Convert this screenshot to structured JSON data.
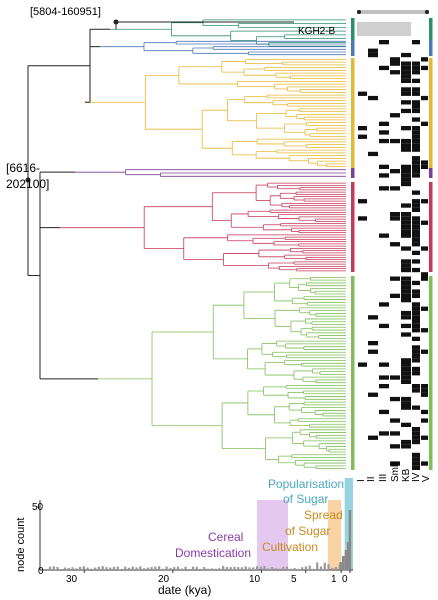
{
  "tree": {
    "top_node_label": "[5804-160951]",
    "leaf_label": "KGH2-B",
    "root_label_line1": "[6616-",
    "root_label_line2": "202100]",
    "clades": [
      {
        "color": "#2a8f6a",
        "leaves": 8
      },
      {
        "color": "#4a78b8",
        "leaves": 6
      },
      {
        "color": "#e8b830",
        "leaves": 40
      },
      {
        "color": "#7b3f98",
        "leaves": 3
      },
      {
        "color": "#c8385a",
        "leaves": 40
      },
      {
        "color": "#7fbf5a",
        "leaves": 70
      }
    ]
  },
  "matrix": {
    "column_labels": [
      "I",
      "II",
      "III",
      "Smb",
      "KB",
      "IV",
      "V"
    ]
  },
  "histogram": {
    "x_axis_label": "date (kya)",
    "y_axis_label": "node count",
    "x_ticks": [
      "30",
      "20",
      "10",
      "5",
      "1",
      "0"
    ],
    "y_ticks": [
      "50",
      "0"
    ],
    "annotations": {
      "sugar_pop_line1": "Popularisation",
      "sugar_pop_line2": "of Sugar",
      "sugar_spread_line1": "Spread",
      "sugar_spread_line2": "of Sugar",
      "sugar_spread_line3": "Cultivation",
      "cereal_line1": "Cereal",
      "cereal_line2": "Domestication"
    },
    "colors": {
      "sugar_pop": "#7ec8d8",
      "sugar_spread": "#f5c890",
      "cereal": "#d8b0e8",
      "sugar_pop_text": "#4aa8c0",
      "sugar_spread_text": "#c88a20",
      "cereal_text": "#8a3aa8"
    }
  }
}
